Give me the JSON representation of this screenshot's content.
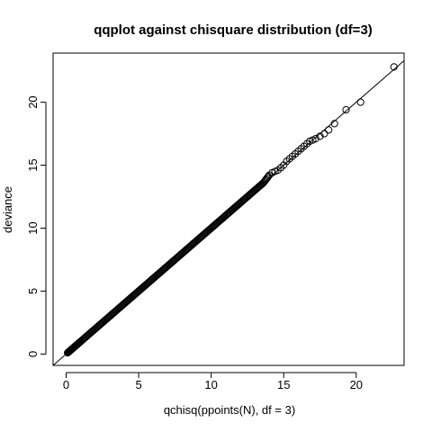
{
  "colors": {
    "ink": "#000000",
    "background": "#ffffff"
  },
  "chart_data": {
    "type": "scatter",
    "title": "qqplot against chisquare distribution (df=3)",
    "xlabel": "qchisq(ppoints(N), df = 3)",
    "ylabel": "deviance",
    "xlim": [
      -0.9,
      23.3
    ],
    "ylim": [
      -0.9,
      23.9
    ],
    "x_ticks": [
      0,
      5,
      10,
      15,
      20
    ],
    "y_ticks": [
      0,
      5,
      10,
      15,
      20
    ],
    "x_tick_labels": [
      "0",
      "5",
      "10",
      "15",
      "20"
    ],
    "y_tick_labels": [
      "0",
      "5",
      "10",
      "15",
      "20"
    ],
    "grid": false,
    "reference_line": {
      "intercept": 0,
      "slope": 1
    },
    "marker": "open-circle",
    "series": [
      {
        "points": [
          [
            0.1,
            0.1
          ],
          [
            0.2,
            0.2
          ],
          [
            0.3,
            0.3
          ],
          [
            0.4,
            0.4
          ],
          [
            0.5,
            0.5
          ],
          [
            0.6,
            0.6
          ],
          [
            0.7,
            0.7
          ],
          [
            0.8,
            0.8
          ],
          [
            0.9,
            0.9
          ],
          [
            1.0,
            1.0
          ],
          [
            1.2,
            1.2
          ],
          [
            1.4,
            1.4
          ],
          [
            1.6,
            1.6
          ],
          [
            1.8,
            1.8
          ],
          [
            2.0,
            2.0
          ],
          [
            2.2,
            2.2
          ],
          [
            2.4,
            2.4
          ],
          [
            2.6,
            2.6
          ],
          [
            2.8,
            2.8
          ],
          [
            3.0,
            3.0
          ],
          [
            3.2,
            3.2
          ],
          [
            3.4,
            3.4
          ],
          [
            3.6,
            3.6
          ],
          [
            3.8,
            3.8
          ],
          [
            4.0,
            4.0
          ],
          [
            4.2,
            4.2
          ],
          [
            4.4,
            4.4
          ],
          [
            4.6,
            4.6
          ],
          [
            4.8,
            4.8
          ],
          [
            5.0,
            5.0
          ],
          [
            5.2,
            5.2
          ],
          [
            5.4,
            5.4
          ],
          [
            5.6,
            5.6
          ],
          [
            5.8,
            5.8
          ],
          [
            6.0,
            6.0
          ],
          [
            6.2,
            6.2
          ],
          [
            6.4,
            6.4
          ],
          [
            6.6,
            6.6
          ],
          [
            6.8,
            6.8
          ],
          [
            7.0,
            7.0
          ],
          [
            7.2,
            7.2
          ],
          [
            7.4,
            7.4
          ],
          [
            7.6,
            7.6
          ],
          [
            7.8,
            7.8
          ],
          [
            8.0,
            8.0
          ],
          [
            8.2,
            8.2
          ],
          [
            8.4,
            8.4
          ],
          [
            8.6,
            8.6
          ],
          [
            8.8,
            8.8
          ],
          [
            9.0,
            9.0
          ],
          [
            9.2,
            9.2
          ],
          [
            9.4,
            9.4
          ],
          [
            9.6,
            9.6
          ],
          [
            9.8,
            9.8
          ],
          [
            10.0,
            10.0
          ],
          [
            10.2,
            10.2
          ],
          [
            10.4,
            10.4
          ],
          [
            10.6,
            10.6
          ],
          [
            10.8,
            10.8
          ],
          [
            11.0,
            11.0
          ],
          [
            11.2,
            11.2
          ],
          [
            11.4,
            11.4
          ],
          [
            11.6,
            11.6
          ],
          [
            11.8,
            11.8
          ],
          [
            12.0,
            12.0
          ],
          [
            12.2,
            12.2
          ],
          [
            12.4,
            12.4
          ],
          [
            12.6,
            12.6
          ],
          [
            12.8,
            12.8
          ],
          [
            13.0,
            13.0
          ],
          [
            13.2,
            13.2
          ],
          [
            13.4,
            13.4
          ],
          [
            13.6,
            13.6
          ],
          [
            13.8,
            13.9
          ],
          [
            14.0,
            14.2
          ],
          [
            14.2,
            14.4
          ],
          [
            14.4,
            14.5
          ],
          [
            14.6,
            14.6
          ],
          [
            14.8,
            14.8
          ],
          [
            15.0,
            15.0
          ],
          [
            15.2,
            15.3
          ],
          [
            15.4,
            15.5
          ],
          [
            15.6,
            15.7
          ],
          [
            15.8,
            15.9
          ],
          [
            16.0,
            16.1
          ],
          [
            16.2,
            16.3
          ],
          [
            16.4,
            16.5
          ],
          [
            16.6,
            16.7
          ],
          [
            16.8,
            16.9
          ],
          [
            17.0,
            17.0
          ],
          [
            17.2,
            17.1
          ],
          [
            17.5,
            17.3
          ],
          [
            17.8,
            17.5
          ],
          [
            18.1,
            17.8
          ],
          [
            18.5,
            18.3
          ],
          [
            19.3,
            19.4
          ],
          [
            20.3,
            20.0
          ],
          [
            22.6,
            22.8
          ]
        ]
      }
    ]
  }
}
